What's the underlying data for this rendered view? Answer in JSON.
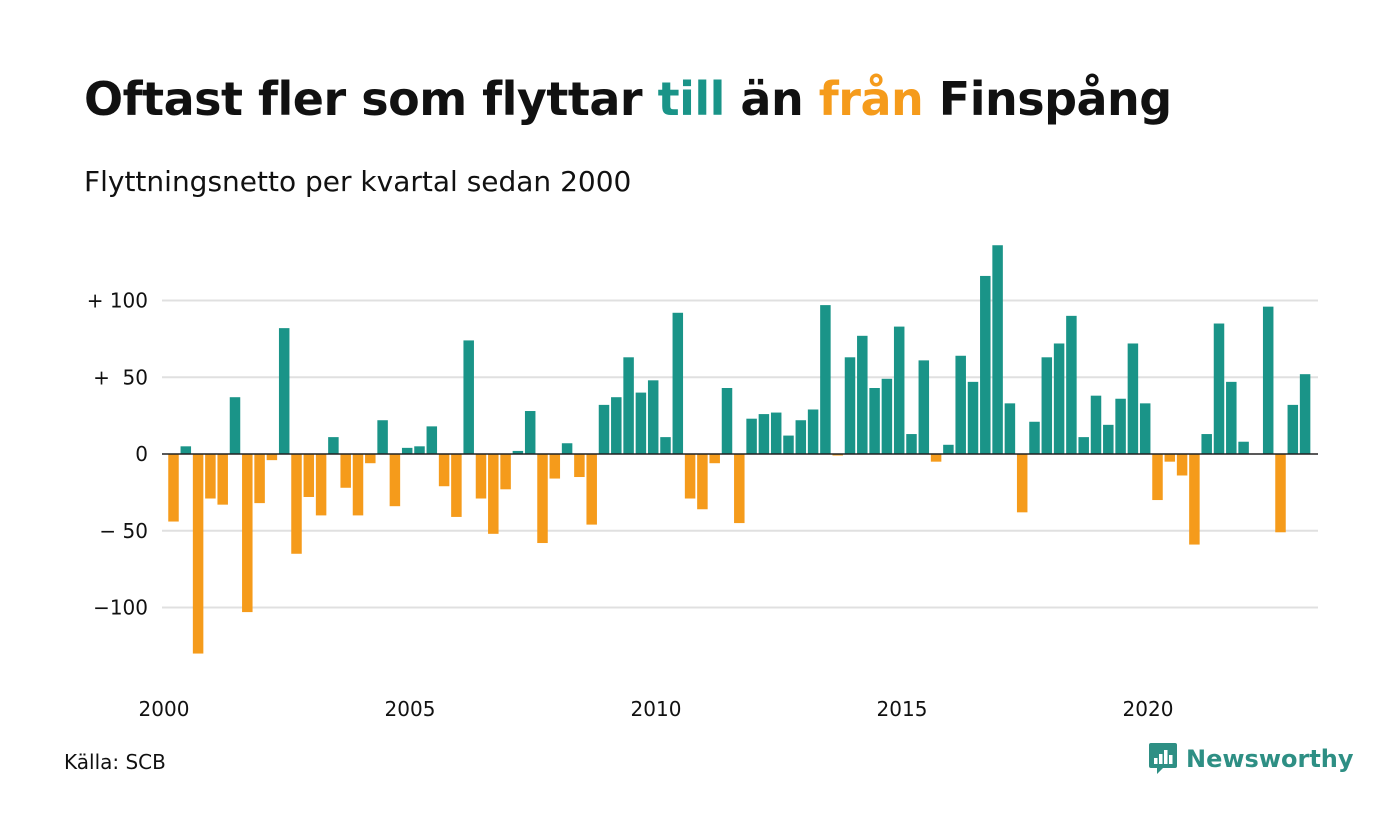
{
  "header": {
    "title_parts": [
      {
        "text": "Oftast fler som flyttar ",
        "color": "#111111"
      },
      {
        "text": "till",
        "color": "#1a9488"
      },
      {
        "text": " än ",
        "color": "#111111"
      },
      {
        "text": "från",
        "color": "#f59b1b"
      },
      {
        "text": " Finspång",
        "color": "#111111"
      }
    ],
    "subtitle": "Flyttningsnetto per kvartal sedan 2000"
  },
  "footer": {
    "source": "Källa: SCB",
    "brand": "Newsworthy",
    "brand_icon": "newsworthy-logo-icon"
  },
  "colors": {
    "positive": "#1a9488",
    "negative": "#f59b1b",
    "grid": "#e0e0e0",
    "zero": "#222222",
    "text": "#111111"
  },
  "chart_data": {
    "type": "bar",
    "title": "Oftast fler som flyttar till än från Finspång",
    "subtitle": "Flyttningsnetto per kvartal sedan 2000",
    "ylim": [
      -130,
      136
    ],
    "yticks": [
      {
        "value": 100,
        "label": "+ 100"
      },
      {
        "value": 50,
        "label": "+  50"
      },
      {
        "value": 0,
        "label": "0"
      },
      {
        "value": -50,
        "label": "− 50"
      },
      {
        "value": -100,
        "label": "−100"
      }
    ],
    "xticks": [
      {
        "value": 2000,
        "label": "2000"
      },
      {
        "value": 2005,
        "label": "2005"
      },
      {
        "value": 2010,
        "label": "2010"
      },
      {
        "value": 2015,
        "label": "2015"
      },
      {
        "value": 2020,
        "label": "2020"
      }
    ],
    "grid": true,
    "first_period": "2000 Q1",
    "values": [
      -44,
      5,
      -130,
      -29,
      -33,
      37,
      -103,
      -32,
      -4,
      82,
      -65,
      -28,
      -40,
      11,
      -22,
      -40,
      -6,
      22,
      -34,
      4,
      5,
      18,
      -21,
      -41,
      74,
      -29,
      -52,
      -23,
      2,
      28,
      -58,
      -16,
      7,
      -15,
      -46,
      32,
      37,
      63,
      40,
      48,
      11,
      92,
      -29,
      -36,
      -6,
      43,
      -45,
      23,
      26,
      27,
      12,
      22,
      29,
      97,
      -1,
      63,
      77,
      43,
      49,
      83,
      13,
      61,
      -5,
      6,
      64,
      47,
      116,
      136,
      33,
      -38,
      21,
      63,
      72,
      90,
      11,
      38,
      19,
      36,
      72,
      33,
      -30,
      -5,
      -14,
      -59,
      13,
      85,
      47,
      8,
      0,
      96,
      -51,
      32,
      52
    ]
  }
}
